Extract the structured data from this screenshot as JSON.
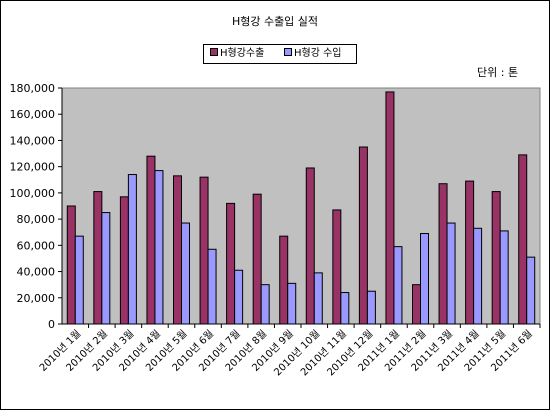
{
  "chart_data": {
    "type": "bar",
    "title": "H형강 수출입 실적",
    "unit_note": "단위 : 톤",
    "categories": [
      "2010년 1월",
      "2010년 2월",
      "2010년 3월",
      "2010년 4월",
      "2010년 5월",
      "2010년 6월",
      "2010년 7월",
      "2010년 8월",
      "2010년 9월",
      "2010년 10월",
      "2010년 11월",
      "2010년 12월",
      "2011년 1월",
      "2011년 2월",
      "2011년 3월",
      "2011년 4월",
      "2011년 5월",
      "2011년 6월"
    ],
    "series": [
      {
        "name": "H형강수출",
        "color": "#993366",
        "values": [
          90000,
          101000,
          97000,
          128000,
          113000,
          112000,
          92000,
          99000,
          67000,
          119000,
          87000,
          135000,
          177000,
          30000,
          107000,
          109000,
          101000,
          129000
        ]
      },
      {
        "name": "H형강 수입",
        "color": "#9999ff",
        "values": [
          67000,
          85000,
          114000,
          117000,
          77000,
          57000,
          41000,
          30000,
          31000,
          39000,
          24000,
          25000,
          59000,
          69000,
          77000,
          73000,
          71000,
          51000
        ]
      }
    ],
    "ylim": [
      0,
      180000
    ],
    "yticks": [
      "0",
      "20,000",
      "40,000",
      "60,000",
      "80,000",
      "100,000",
      "120,000",
      "140,000",
      "160,000",
      "180,000"
    ],
    "plot_background": "#c0c0c0",
    "legend_position": "top-center"
  }
}
